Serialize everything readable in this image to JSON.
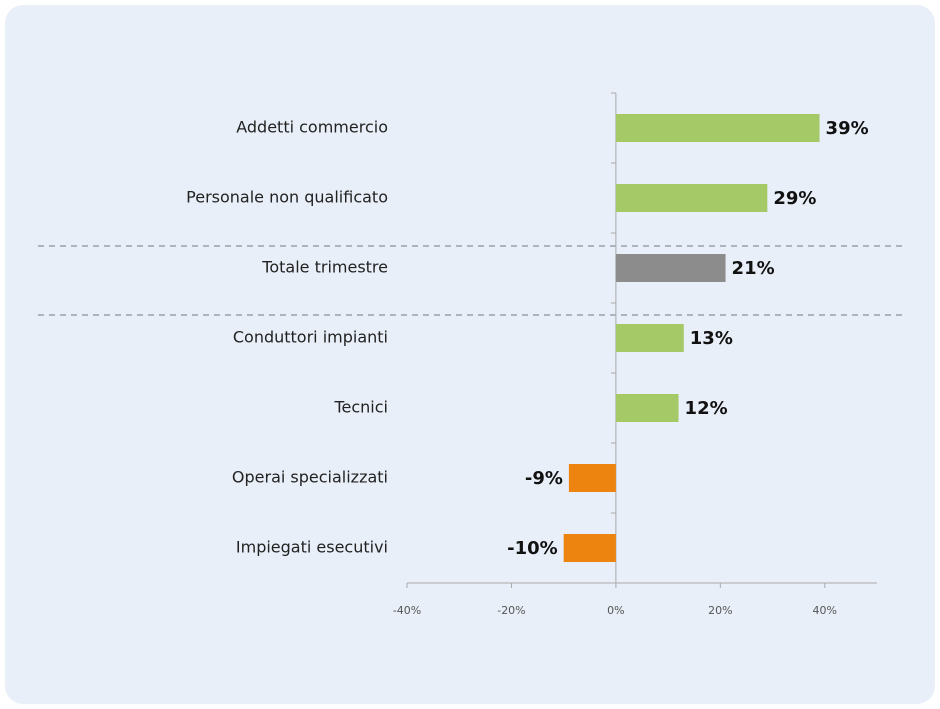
{
  "chart_data": {
    "type": "hbar",
    "categories": [
      "Addetti commercio",
      "Personale non qualificato",
      "Totale trimestre",
      "Conduttori impianti",
      "Tecnici",
      "Operai specializzati",
      "Impiegati esecutivi"
    ],
    "values": [
      39,
      29,
      21,
      13,
      12,
      -9,
      -10
    ],
    "value_labels": [
      "39%",
      "29%",
      "21%",
      "13%",
      "12%",
      "-9%",
      "-10%"
    ],
    "colors": [
      "#a5c967",
      "#a5c967",
      "#8c8c8c",
      "#a5c967",
      "#a5c967",
      "#ee8410",
      "#ee8410"
    ],
    "xlim": [
      -40,
      50
    ],
    "xticks": [
      {
        "value": -40,
        "label": "-40%"
      },
      {
        "value": -20,
        "label": "-20%"
      },
      {
        "value": 0,
        "label": "0%"
      },
      {
        "value": 20,
        "label": "20%"
      },
      {
        "value": 40,
        "label": "40%"
      }
    ]
  }
}
